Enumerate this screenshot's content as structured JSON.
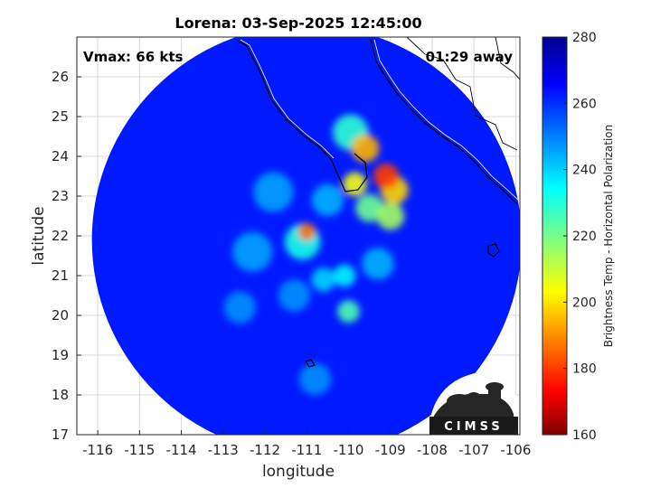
{
  "chart_data": {
    "type": "heatmap",
    "title": "Lorena: 03-Sep-2025 12:45:00",
    "xlabel": "longitude",
    "ylabel": "latitude",
    "xlim": [
      -116.5,
      -105.9
    ],
    "ylim": [
      17,
      27
    ],
    "xticks": [
      "-116",
      "-115",
      "-114",
      "-113",
      "-112",
      "-111",
      "-110",
      "-109",
      "-108",
      "-107",
      "-106"
    ],
    "yticks": [
      "17",
      "18",
      "19",
      "20",
      "21",
      "22",
      "23",
      "24",
      "25",
      "26"
    ],
    "grid": true,
    "colorbar": {
      "label": "Brightness Temp - Horizontal Polarization",
      "range": [
        160,
        280
      ],
      "ticks": [
        "160",
        "180",
        "200",
        "220",
        "240",
        "260",
        "280"
      ],
      "colormap": "jet"
    },
    "annotations": {
      "vmax": "Vmax: 66 kts",
      "time_away": "01:29 away"
    },
    "swath": {
      "center_lon": -111.0,
      "center_lat": 21.9,
      "background_value": 262
    },
    "features": [
      {
        "lon": -111.0,
        "lat": 22.1,
        "value": 188,
        "radius": 0.22
      },
      {
        "lon": -111.1,
        "lat": 21.85,
        "value": 232,
        "radius": 0.45
      },
      {
        "lon": -109.1,
        "lat": 23.5,
        "value": 182,
        "radius": 0.32
      },
      {
        "lon": -109.6,
        "lat": 24.2,
        "value": 196,
        "radius": 0.35
      },
      {
        "lon": -108.9,
        "lat": 23.15,
        "value": 200,
        "radius": 0.35
      },
      {
        "lon": -109.85,
        "lat": 23.3,
        "value": 206,
        "radius": 0.3
      },
      {
        "lon": -109.0,
        "lat": 22.5,
        "value": 216,
        "radius": 0.35
      },
      {
        "lon": -109.5,
        "lat": 22.7,
        "value": 222,
        "radius": 0.35
      },
      {
        "lon": -109.95,
        "lat": 24.6,
        "value": 230,
        "radius": 0.45
      },
      {
        "lon": -110.0,
        "lat": 20.1,
        "value": 226,
        "radius": 0.28
      },
      {
        "lon": -110.1,
        "lat": 21.0,
        "value": 236,
        "radius": 0.28
      },
      {
        "lon": -110.6,
        "lat": 20.9,
        "value": 240,
        "radius": 0.3
      },
      {
        "lon": -112.3,
        "lat": 21.6,
        "value": 246,
        "radius": 0.5
      },
      {
        "lon": -111.8,
        "lat": 23.1,
        "value": 246,
        "radius": 0.5
      },
      {
        "lon": -110.5,
        "lat": 22.9,
        "value": 244,
        "radius": 0.4
      },
      {
        "lon": -112.6,
        "lat": 20.2,
        "value": 248,
        "radius": 0.4
      },
      {
        "lon": -111.3,
        "lat": 20.5,
        "value": 248,
        "radius": 0.4
      },
      {
        "lon": -109.3,
        "lat": 21.3,
        "value": 244,
        "radius": 0.4
      },
      {
        "lon": -110.8,
        "lat": 18.4,
        "value": 248,
        "radius": 0.4
      }
    ]
  },
  "logo": {
    "text": "CIMSS"
  }
}
